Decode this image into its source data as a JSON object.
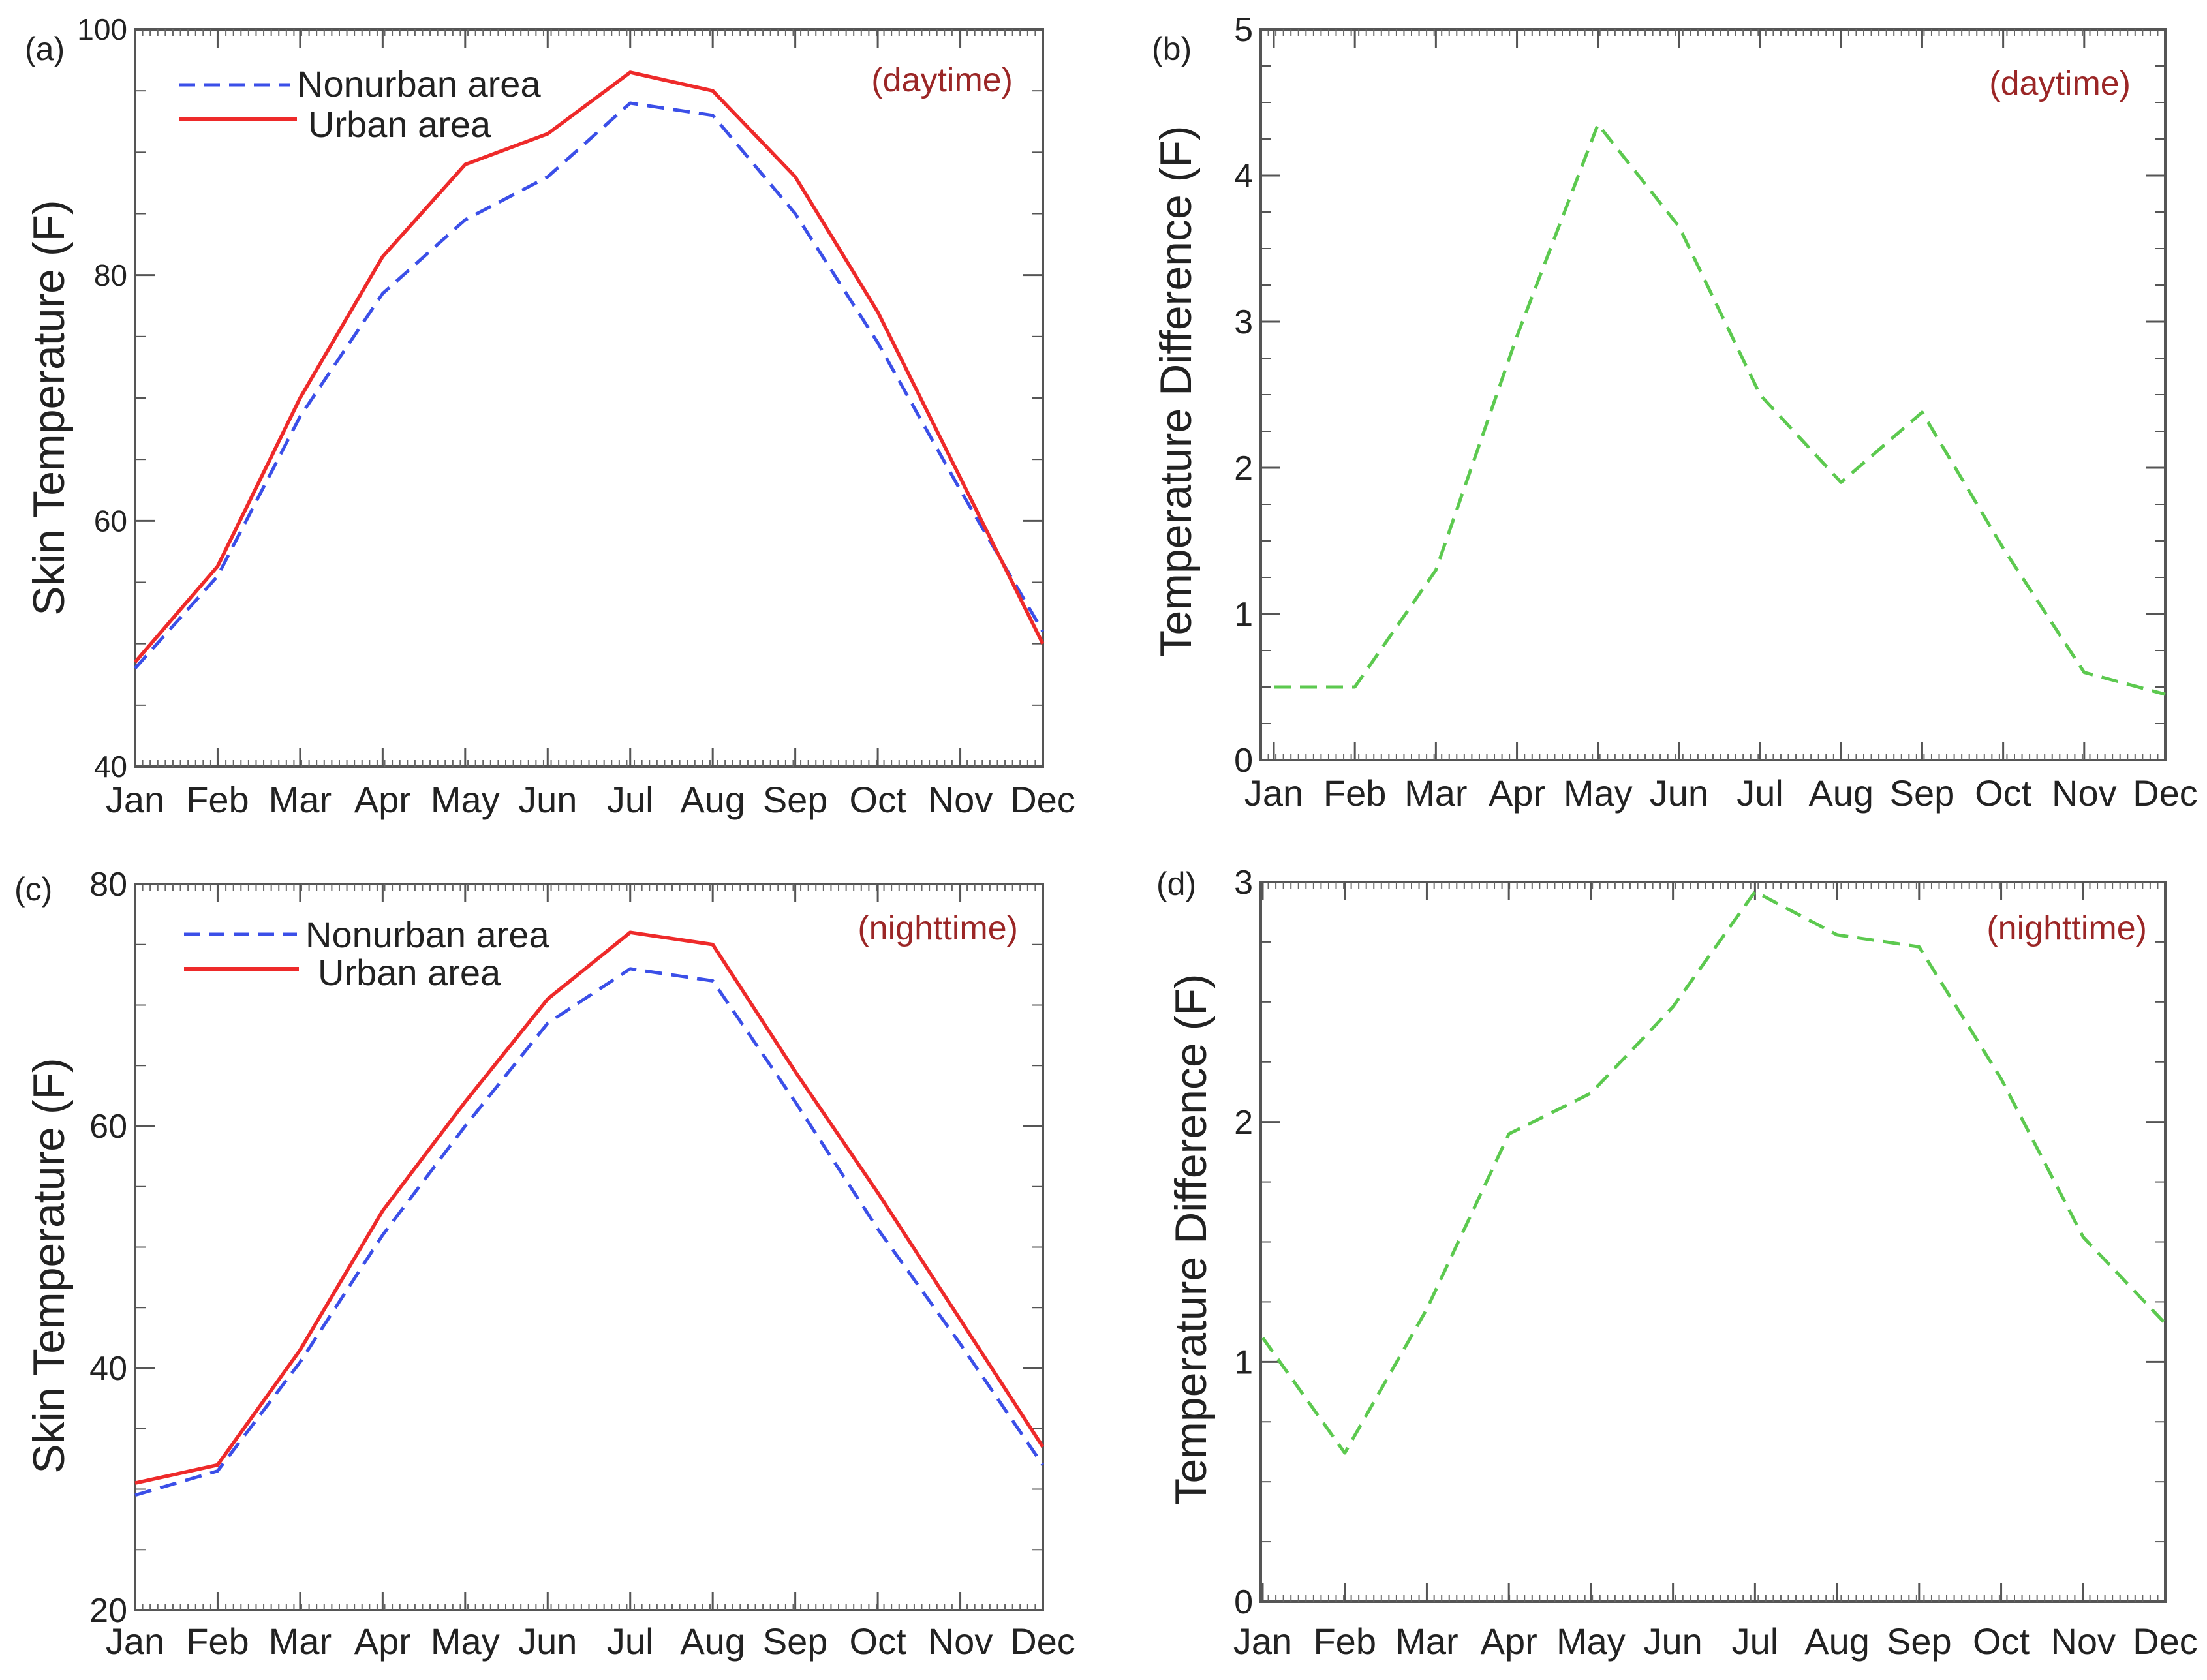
{
  "chart_data": [
    {
      "type": "line",
      "panel_label": "(a)",
      "annotation": "(daytime)",
      "title": "",
      "xlabel": "",
      "ylabel": "Skin Temperature (F)",
      "categories": [
        "Jan",
        "Feb",
        "Mar",
        "Apr",
        "May",
        "Jun",
        "Jul",
        "Aug",
        "Sep",
        "Oct",
        "Nov",
        "Dec"
      ],
      "ylim": [
        40,
        100
      ],
      "yticks": [
        40,
        60,
        80,
        100
      ],
      "legend_position": "top-left",
      "series": [
        {
          "name": "Nonurban area",
          "color": "#3b4fe8",
          "style": "dashed",
          "values": [
            48.0,
            55.5,
            68.5,
            78.5,
            84.5,
            88.0,
            94.0,
            93.0,
            85.0,
            74.5,
            62.5,
            51.0
          ]
        },
        {
          "name": "Urban area",
          "color": "#ee2a2a",
          "style": "solid",
          "values": [
            48.5,
            56.3,
            70.0,
            81.5,
            89.0,
            91.5,
            96.5,
            95.0,
            88.0,
            77.0,
            63.5,
            50.0
          ]
        }
      ]
    },
    {
      "type": "line",
      "panel_label": "(b)",
      "annotation": "(daytime)",
      "title": "",
      "xlabel": "",
      "ylabel": "Temperature Difference (F)",
      "categories": [
        "Jan",
        "Feb",
        "Mar",
        "Apr",
        "May",
        "Jun",
        "Jul",
        "Aug",
        "Sep",
        "Oct",
        "Nov",
        "Dec"
      ],
      "ylim": [
        0,
        5
      ],
      "yticks": [
        0,
        1,
        2,
        3,
        4,
        5
      ],
      "series": [
        {
          "name": "Difference",
          "color": "#5cc94f",
          "style": "dashed",
          "values": [
            0.5,
            0.5,
            1.3,
            2.9,
            4.35,
            3.65,
            2.5,
            1.9,
            2.38,
            1.45,
            0.6,
            0.45
          ]
        }
      ]
    },
    {
      "type": "line",
      "panel_label": "(c)",
      "annotation": "(nighttime)",
      "title": "",
      "xlabel": "",
      "ylabel": "Skin Temperature (F)",
      "categories": [
        "Jan",
        "Feb",
        "Mar",
        "Apr",
        "May",
        "Jun",
        "Jul",
        "Aug",
        "Sep",
        "Oct",
        "Nov",
        "Dec"
      ],
      "ylim": [
        20,
        80
      ],
      "yticks": [
        20,
        40,
        60,
        80
      ],
      "legend_position": "top-left",
      "series": [
        {
          "name": "Nonurban area",
          "color": "#3b4fe8",
          "style": "dashed",
          "values": [
            29.5,
            31.5,
            40.5,
            51.0,
            60.0,
            68.5,
            73.0,
            72.0,
            62.0,
            51.5,
            42.0,
            32.0
          ]
        },
        {
          "name": "Urban area",
          "color": "#ee2a2a",
          "style": "solid",
          "values": [
            30.5,
            32.0,
            41.5,
            53.0,
            62.0,
            70.5,
            76.0,
            75.0,
            64.5,
            54.5,
            44.0,
            33.5
          ]
        }
      ]
    },
    {
      "type": "line",
      "panel_label": "(d)",
      "annotation": "(nighttime)",
      "title": "",
      "xlabel": "",
      "ylabel": "Temperature Difference (F)",
      "categories": [
        "Jan",
        "Feb",
        "Mar",
        "Apr",
        "May",
        "Jun",
        "Jul",
        "Aug",
        "Sep",
        "Oct",
        "Nov",
        "Dec"
      ],
      "ylim": [
        0,
        3
      ],
      "yticks": [
        0,
        1,
        2,
        3
      ],
      "series": [
        {
          "name": "Difference",
          "color": "#5cc94f",
          "style": "dashed",
          "values": [
            1.1,
            0.62,
            1.22,
            1.95,
            2.12,
            2.48,
            2.96,
            2.78,
            2.73,
            2.18,
            1.52,
            1.16
          ]
        }
      ]
    }
  ]
}
